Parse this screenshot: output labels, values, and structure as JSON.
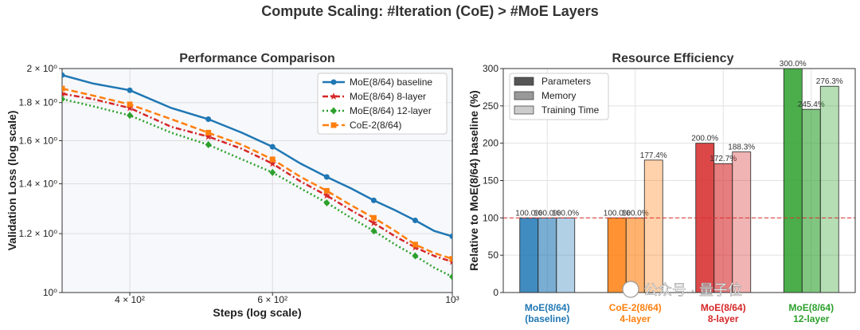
{
  "figure": {
    "suptitle": "Compute Scaling: #Iteration (CoE) > #MoE Layers",
    "watermark": "公众号 · 量子位"
  },
  "chart_data": [
    {
      "type": "line",
      "title": "Performance Comparison",
      "xlabel": "Steps (log scale)",
      "ylabel": "Validation Loss (log scale)",
      "xscale": "log",
      "yscale": "log",
      "xlim": [
        330,
        1000
      ],
      "ylim": [
        1.0,
        2.0
      ],
      "xticks": [
        {
          "value": 400,
          "label": "4 × 10²"
        },
        {
          "value": 600,
          "label": "6 × 10²"
        },
        {
          "value": 1000,
          "label": "10³"
        }
      ],
      "yticks": [
        {
          "value": 1.0,
          "label": "10⁰"
        },
        {
          "value": 1.2,
          "label": "1.2 × 10⁰"
        },
        {
          "value": 1.4,
          "label": "1.4 × 10⁰"
        },
        {
          "value": 1.6,
          "label": "1.6 × 10⁰"
        },
        {
          "value": 1.8,
          "label": "1.8 × 10⁰"
        },
        {
          "value": 2.0,
          "label": "2 × 10⁰"
        }
      ],
      "grid": true,
      "legend_position": "top-right",
      "x": [
        330,
        360,
        400,
        450,
        500,
        550,
        600,
        650,
        700,
        750,
        800,
        850,
        900,
        950,
        1000
      ],
      "series": [
        {
          "name": "MoE(8/64) baseline",
          "color": "#1f77b4",
          "marker": "circle",
          "dash": "solid",
          "values": [
            1.96,
            1.91,
            1.87,
            1.77,
            1.71,
            1.64,
            1.57,
            1.49,
            1.43,
            1.38,
            1.33,
            1.29,
            1.25,
            1.21,
            1.19
          ]
        },
        {
          "name": "MoE(8/64) 8-layer",
          "color": "#d62728",
          "marker": "star",
          "dash": "dashdot",
          "values": [
            1.85,
            1.82,
            1.77,
            1.67,
            1.62,
            1.56,
            1.49,
            1.41,
            1.35,
            1.29,
            1.24,
            1.19,
            1.15,
            1.12,
            1.1
          ]
        },
        {
          "name": "MoE(8/64) 12-layer",
          "color": "#2ca02c",
          "marker": "diamond",
          "dash": "dotted",
          "values": [
            1.82,
            1.78,
            1.73,
            1.64,
            1.58,
            1.51,
            1.45,
            1.38,
            1.32,
            1.26,
            1.21,
            1.16,
            1.12,
            1.08,
            1.05
          ]
        },
        {
          "name": "CoE-2(8/64)",
          "color": "#ff7f0e",
          "marker": "square",
          "dash": "dashed",
          "values": [
            1.88,
            1.84,
            1.79,
            1.71,
            1.64,
            1.58,
            1.51,
            1.43,
            1.37,
            1.31,
            1.26,
            1.21,
            1.16,
            1.13,
            1.11
          ]
        }
      ]
    },
    {
      "type": "bar",
      "title": "Resource Efficiency",
      "ylabel": "Relative to MoE(8/64) baseline (%)",
      "ylim": [
        0,
        300
      ],
      "yticks": [
        0,
        50,
        100,
        150,
        200,
        250,
        300
      ],
      "grid": true,
      "baseline": 100,
      "legend_position": "top-left",
      "legend": [
        "Parameters",
        "Memory",
        "Training Time"
      ],
      "categories": [
        {
          "label": "MoE(8/64)\n(baseline)",
          "color": "#1f77b4"
        },
        {
          "label": "CoE-2(8/64)\n4-layer",
          "color": "#ff7f0e"
        },
        {
          "label": "MoE(8/64)\n8-layer",
          "color": "#d62728"
        },
        {
          "label": "MoE(8/64)\n12-layer",
          "color": "#2ca02c"
        }
      ],
      "series": [
        {
          "name": "Parameters",
          "values": [
            100.0,
            100.0,
            200.0,
            300.0
          ],
          "labels": [
            "100.0%",
            "100.0%",
            "200.0%",
            "300.0%"
          ]
        },
        {
          "name": "Memory",
          "values": [
            100.0,
            100.0,
            172.7,
            245.4
          ],
          "labels": [
            "100.0%",
            "100.0%",
            "172.7%",
            "245.4%"
          ]
        },
        {
          "name": "Training Time",
          "values": [
            100.0,
            177.4,
            188.3,
            276.3
          ],
          "labels": [
            "100.0%",
            "177.4%",
            "188.3%",
            "276.3%"
          ]
        }
      ]
    }
  ]
}
